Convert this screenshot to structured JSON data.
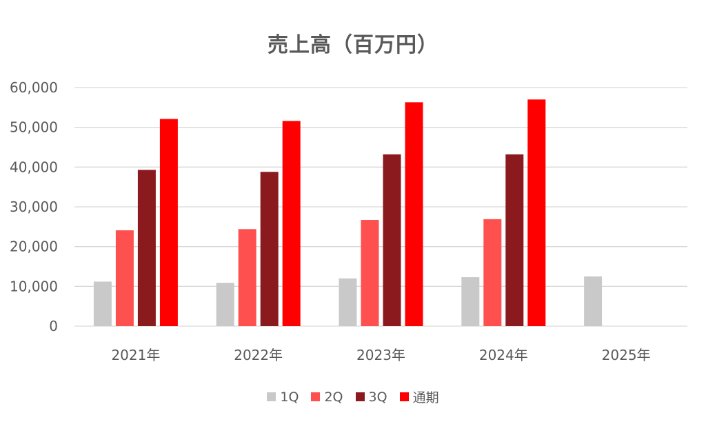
{
  "chart_data": {
    "type": "bar",
    "title": "売上高（百万円）",
    "categories": [
      "2021年",
      "2022年",
      "2023年",
      "2024年",
      "2025年"
    ],
    "series": [
      {
        "name": "1Q",
        "color": "#C9C9C9",
        "values": [
          11200,
          10900,
          12000,
          12300,
          12500
        ]
      },
      {
        "name": "2Q",
        "color": "#FF5050",
        "values": [
          24100,
          24400,
          26700,
          26900,
          null
        ]
      },
      {
        "name": "3Q",
        "color": "#8B1A1F",
        "values": [
          39300,
          38800,
          43200,
          43200,
          null
        ]
      },
      {
        "name": "通期",
        "color": "#FF0000",
        "values": [
          52100,
          51600,
          56300,
          57000,
          null
        ]
      }
    ],
    "ylim": [
      0,
      60000
    ],
    "yticks": [
      "0",
      "10,000",
      "20,000",
      "30,000",
      "40,000",
      "50,000",
      "60,000"
    ],
    "grid": true,
    "legend_position": "bottom"
  }
}
